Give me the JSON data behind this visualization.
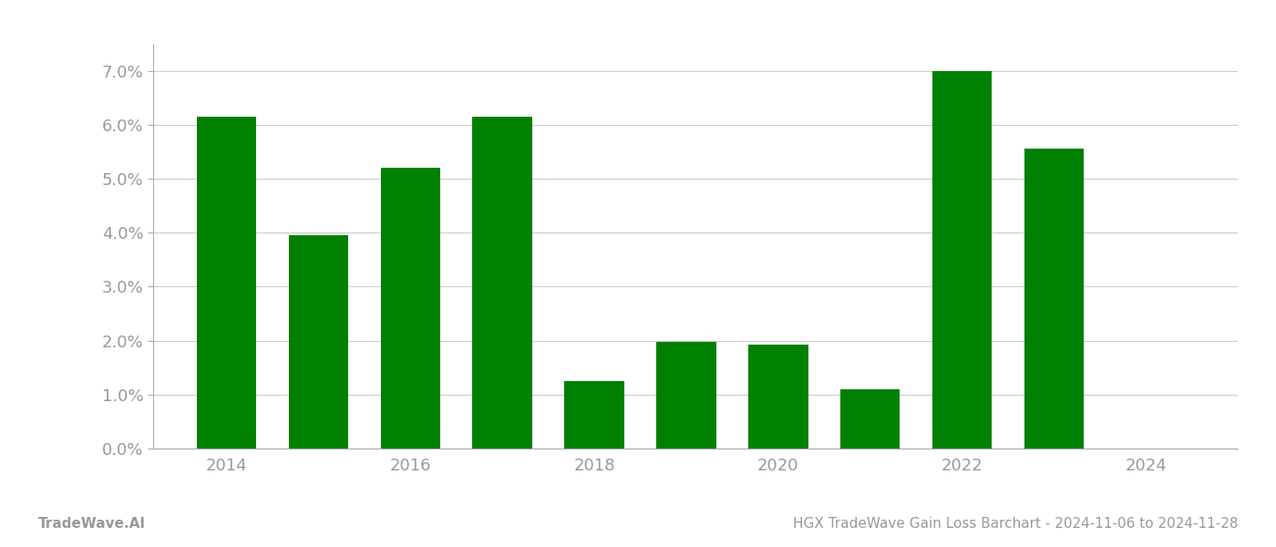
{
  "years": [
    2014,
    2015,
    2016,
    2017,
    2018,
    2019,
    2020,
    2021,
    2022,
    2023
  ],
  "values": [
    0.0615,
    0.0395,
    0.052,
    0.0615,
    0.0125,
    0.0197,
    0.0193,
    0.011,
    0.07,
    0.0555
  ],
  "bar_color": "#008000",
  "title": "HGX TradeWave Gain Loss Barchart - 2024-11-06 to 2024-11-28",
  "watermark": "TradeWave.AI",
  "ylim": [
    0,
    0.075
  ],
  "yticks": [
    0.0,
    0.01,
    0.02,
    0.03,
    0.04,
    0.05,
    0.06,
    0.07
  ],
  "background_color": "#ffffff",
  "grid_color": "#cccccc",
  "bar_width": 0.65,
  "title_fontsize": 11,
  "watermark_fontsize": 11,
  "tick_fontsize": 13,
  "tick_color": "#999999",
  "spine_color": "#aaaaaa",
  "xlim_left": 2013.2,
  "xlim_right": 2025.0
}
